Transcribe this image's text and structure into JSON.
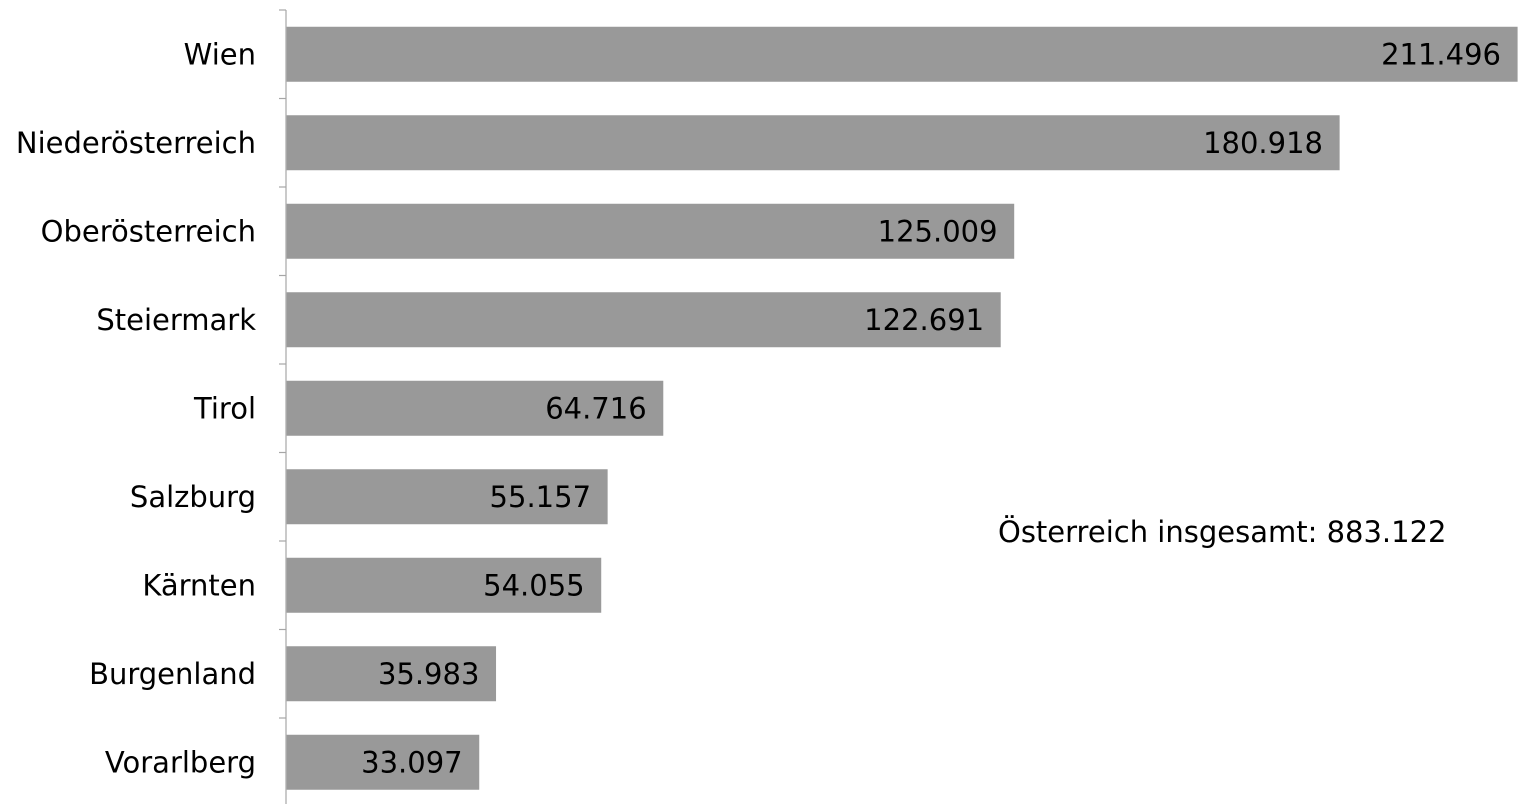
{
  "chart_data": {
    "type": "bar",
    "orientation": "horizontal",
    "categories": [
      "Wien",
      "Niederösterreich",
      "Oberösterreich",
      "Steiermark",
      "Tirol",
      "Salzburg",
      "Kärnten",
      "Burgenland",
      "Vorarlberg"
    ],
    "values": [
      211496,
      180918,
      125009,
      122691,
      64716,
      55157,
      54055,
      35983,
      33097
    ],
    "value_labels": [
      "211.496",
      "180.918",
      "125.009",
      "122.691",
      "64.716",
      "55.157",
      "54.055",
      "35.983",
      "33.097"
    ],
    "annotation": "Österreich insgesamt: 883.122",
    "title": "",
    "xlabel": "",
    "ylabel": "",
    "xlim": [
      0,
      211496
    ],
    "grid": false,
    "legend": "none",
    "bar_color": "#999999",
    "axis_color": "#a6a6a6"
  }
}
